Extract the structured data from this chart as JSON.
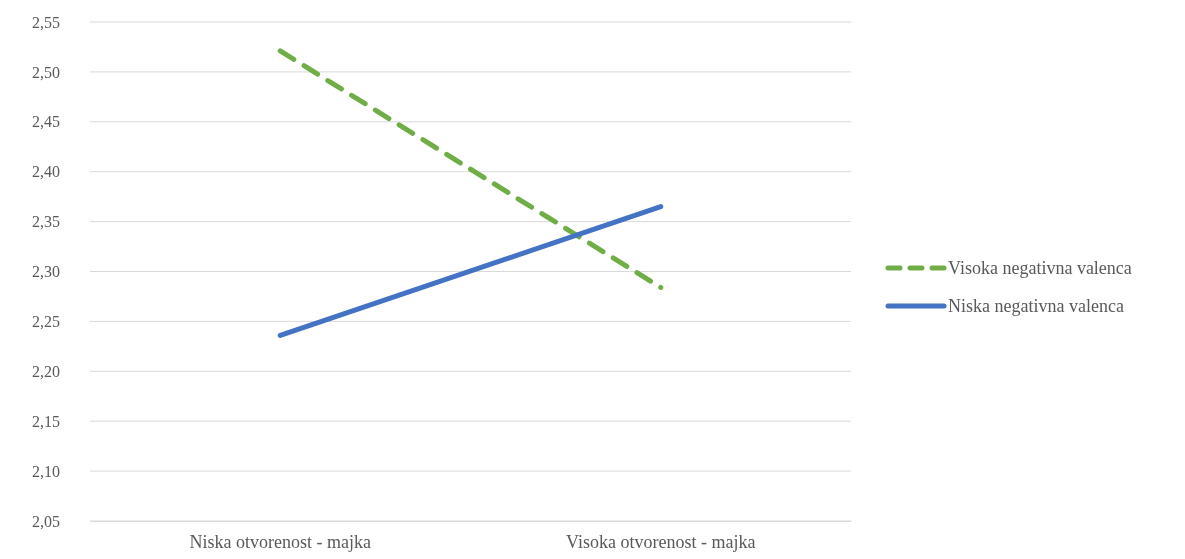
{
  "chart_data": {
    "type": "line",
    "categories": [
      "Niska otvorenost - majka",
      "Visoka otvorenost - majka"
    ],
    "series": [
      {
        "name": "Visoka negativna valenca",
        "color": "#70ad47",
        "line_style": "dashed",
        "values": [
          2.521,
          2.284
        ]
      },
      {
        "name": "Niska negativna valenca",
        "color": "#4472c4",
        "line_style": "solid",
        "values": [
          2.236,
          2.365
        ]
      }
    ],
    "ylim": [
      2.05,
      2.55
    ],
    "yticks": [
      {
        "value": 2.05,
        "label": "2,05"
      },
      {
        "value": 2.1,
        "label": "2,10"
      },
      {
        "value": 2.15,
        "label": "2,15"
      },
      {
        "value": 2.2,
        "label": "2,20"
      },
      {
        "value": 2.25,
        "label": "2,25"
      },
      {
        "value": 2.3,
        "label": "2,30"
      },
      {
        "value": 2.35,
        "label": "2,35"
      },
      {
        "value": 2.4,
        "label": "2,40"
      },
      {
        "value": 2.45,
        "label": "2,45"
      },
      {
        "value": 2.5,
        "label": "2,50"
      },
      {
        "value": 2.55,
        "label": "2,55"
      }
    ],
    "grid": "y",
    "legend": "right",
    "marker": "none"
  }
}
